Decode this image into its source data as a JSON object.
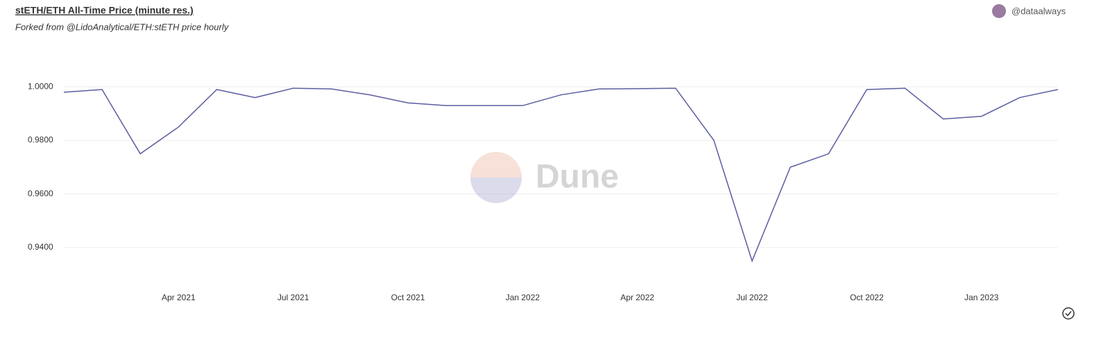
{
  "chart_data": {
    "type": "line",
    "title": "stETH/ETH All-Time Price (minute res.)",
    "subtitle": "Forked from @LidoAnalytical/ETH:stETH price hourly",
    "author": "@dataalways",
    "watermark": "Dune",
    "x": [
      "2021-01",
      "2021-02",
      "2021-03",
      "2021-04",
      "2021-05",
      "2021-06",
      "2021-07",
      "2021-08",
      "2021-09",
      "2021-10",
      "2021-11",
      "2021-12",
      "2022-01",
      "2022-02",
      "2022-03",
      "2022-04",
      "2022-05",
      "2022-06",
      "2022-07",
      "2022-08",
      "2022-09",
      "2022-10",
      "2022-11",
      "2022-12",
      "2023-01",
      "2023-02",
      "2023-03"
    ],
    "series": [
      {
        "name": "stETH/ETH",
        "color": "#5a5ca0",
        "values": [
          0.998,
          0.999,
          0.975,
          0.985,
          0.999,
          0.996,
          0.9995,
          0.9992,
          0.997,
          0.994,
          0.993,
          0.993,
          0.993,
          0.997,
          0.9992,
          0.9993,
          0.9995,
          0.98,
          0.935,
          0.97,
          0.975,
          0.999,
          0.9995,
          0.988,
          0.989,
          0.996,
          0.999
        ]
      }
    ],
    "xlim": [
      "2021-01",
      "2023-03"
    ],
    "xticks": [
      {
        "value": "2021-04",
        "label": "Apr 2021"
      },
      {
        "value": "2021-07",
        "label": "Jul 2021"
      },
      {
        "value": "2021-10",
        "label": "Oct 2021"
      },
      {
        "value": "2022-01",
        "label": "Jan 2022"
      },
      {
        "value": "2022-04",
        "label": "Apr 2022"
      },
      {
        "value": "2022-07",
        "label": "Jul 2022"
      },
      {
        "value": "2022-10",
        "label": "Oct 2022"
      },
      {
        "value": "2023-01",
        "label": "Jan 2023"
      }
    ],
    "ylim": [
      0.925,
      1.013
    ],
    "yticks": [
      {
        "value": 0.94,
        "label": "0.9400"
      },
      {
        "value": 0.96,
        "label": "0.9600"
      },
      {
        "value": 0.98,
        "label": "0.9800"
      },
      {
        "value": 1.0,
        "label": "1.0000"
      }
    ],
    "grid": true
  }
}
